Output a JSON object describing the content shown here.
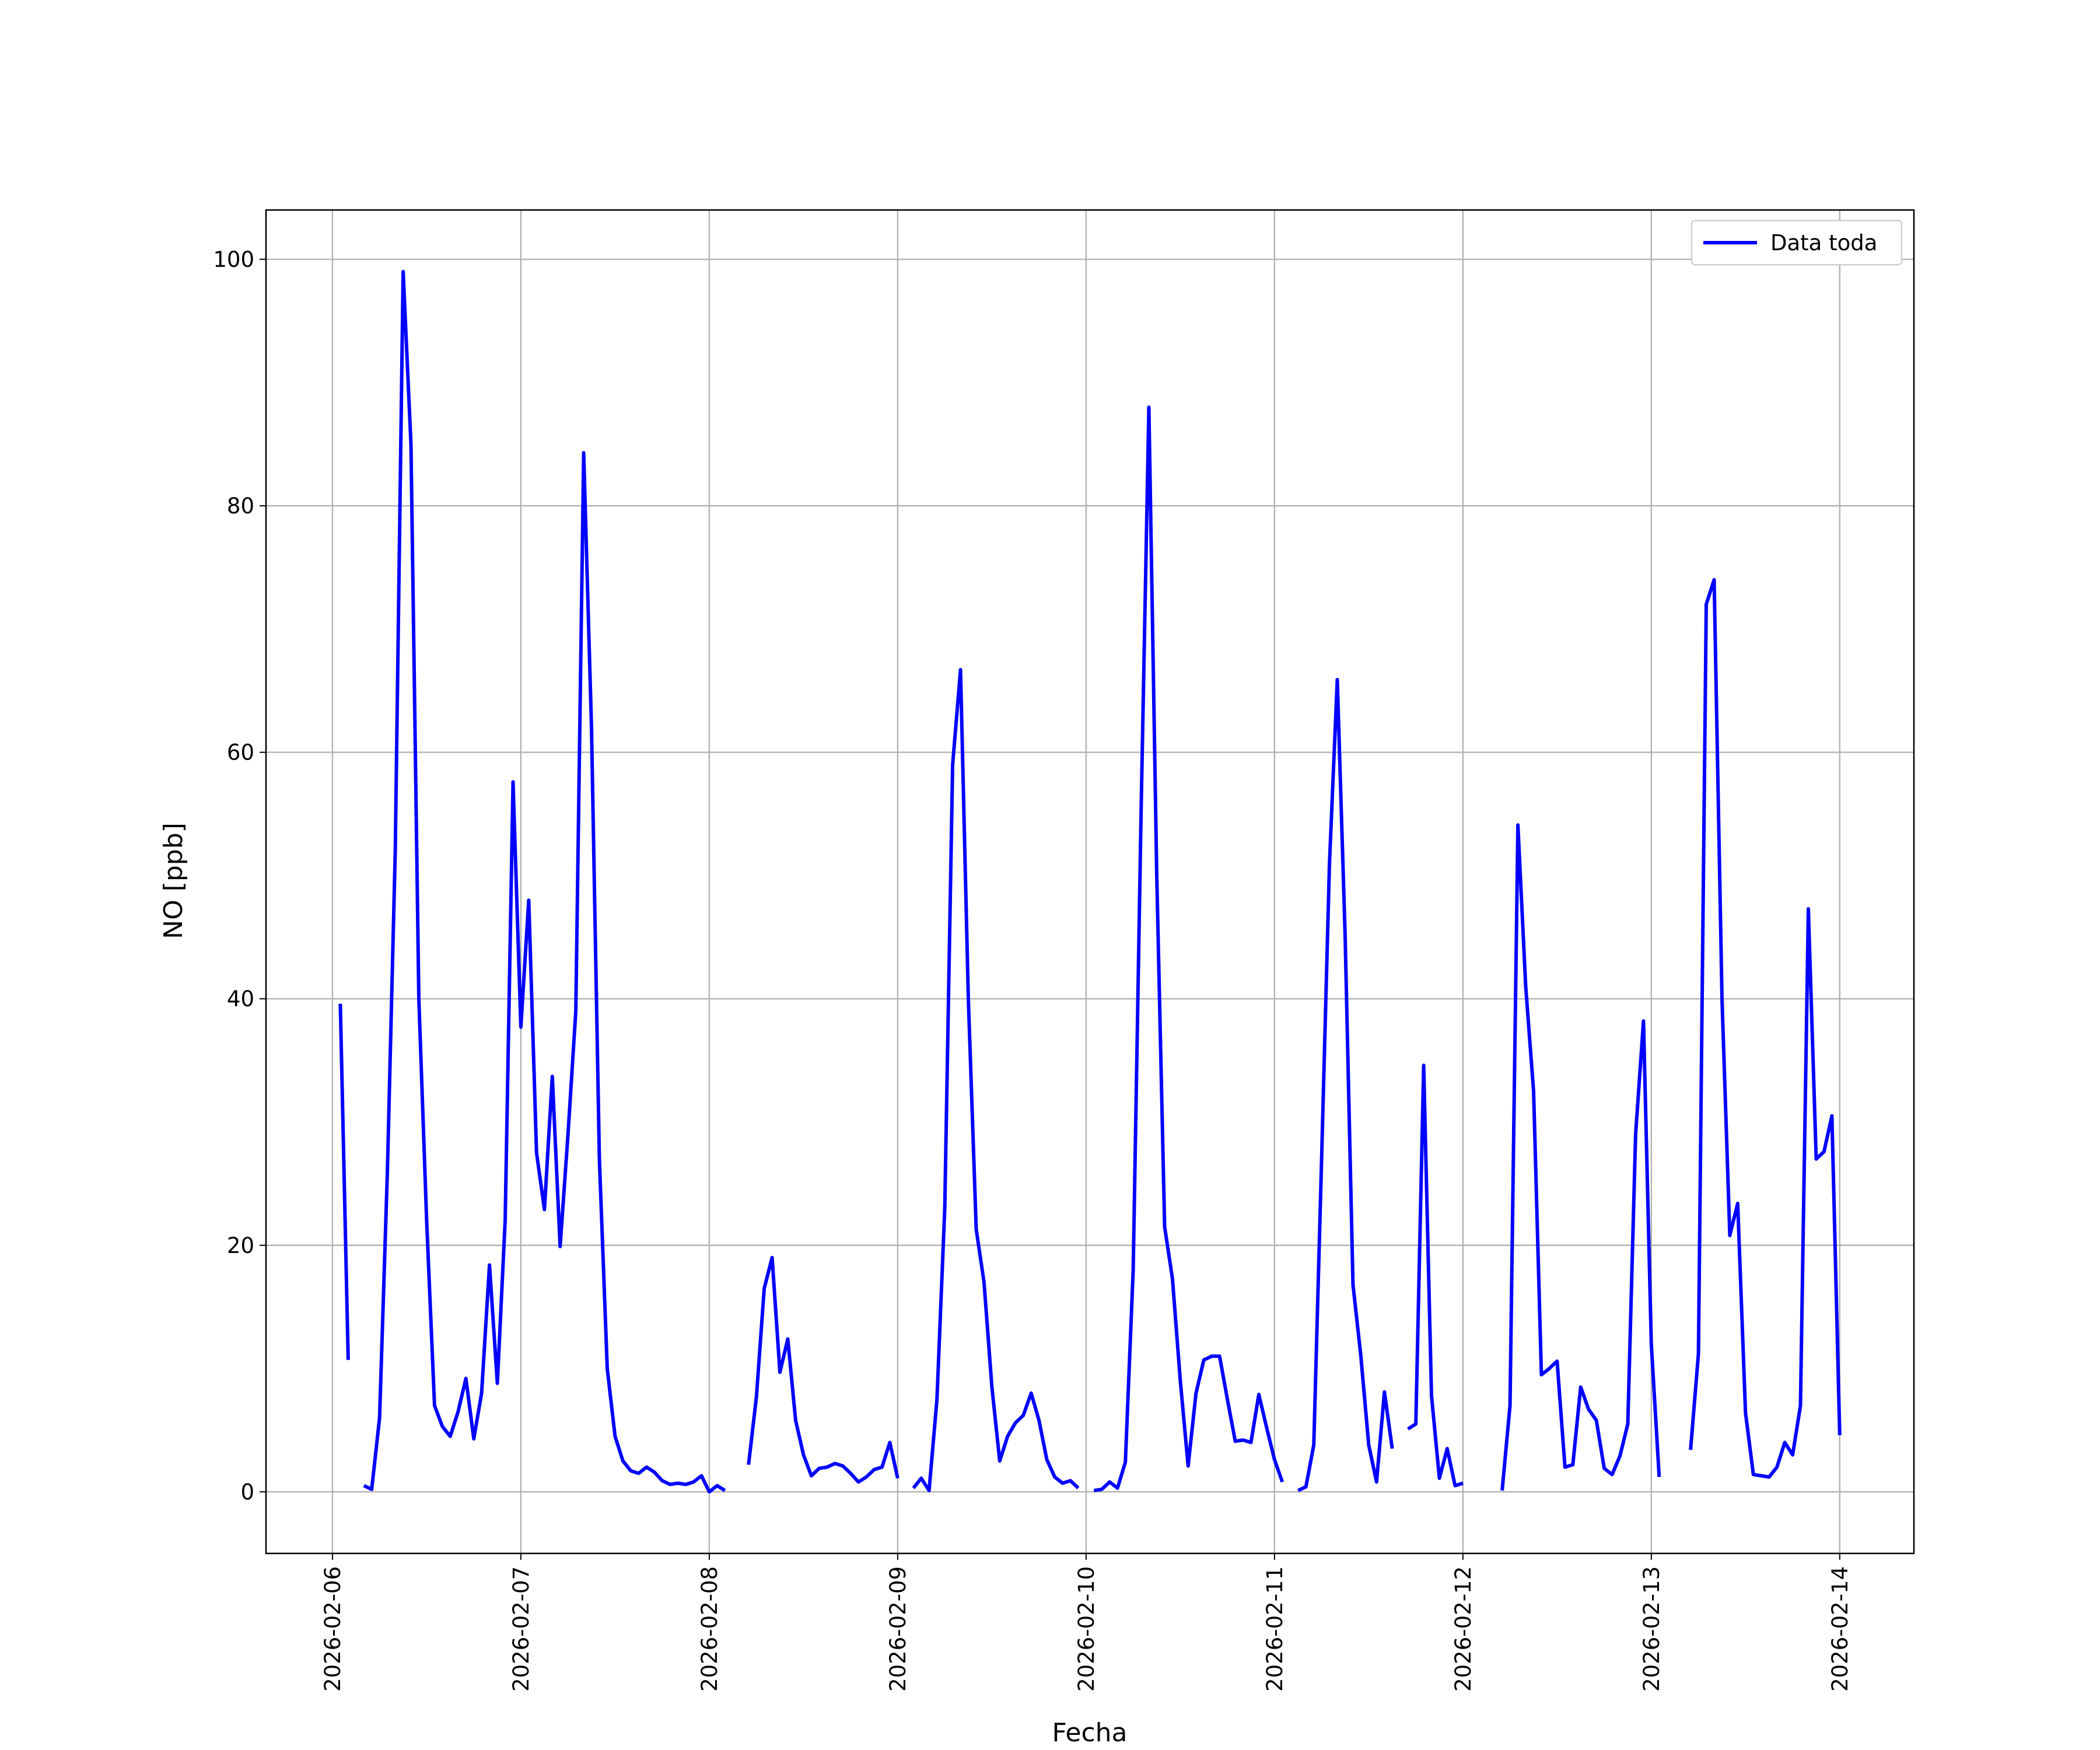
{
  "chart_data": {
    "type": "line",
    "x_label": "Fecha",
    "y_label": "NO [ppb]",
    "xlim": [
      "2026-02-05 15:32",
      "2026-02-14 09:27"
    ],
    "xticks": [
      "2026-02-06",
      "2026-02-07",
      "2026-02-08",
      "2026-02-09",
      "2026-02-10",
      "2026-02-11",
      "2026-02-12",
      "2026-02-13",
      "2026-02-14"
    ],
    "ylim": [
      -5,
      104
    ],
    "yticks": [
      0,
      20,
      40,
      60,
      80,
      100
    ],
    "grid": true,
    "legend": "upper right",
    "x": [
      "2026-02-06 00:00",
      "2026-02-06 01:00",
      "2026-02-06 02:00",
      "2026-02-06 03:00",
      "2026-02-06 04:00",
      "2026-02-06 05:00",
      "2026-02-06 06:00",
      "2026-02-06 07:00",
      "2026-02-06 08:00",
      "2026-02-06 09:00",
      "2026-02-06 10:00",
      "2026-02-06 11:00",
      "2026-02-06 12:00",
      "2026-02-06 13:00",
      "2026-02-06 14:00",
      "2026-02-06 15:00",
      "2026-02-06 16:00",
      "2026-02-06 17:00",
      "2026-02-06 18:00",
      "2026-02-06 19:00",
      "2026-02-06 20:00",
      "2026-02-06 21:00",
      "2026-02-06 22:00",
      "2026-02-06 23:00",
      "2026-02-07 00:00",
      "2026-02-07 01:00",
      "2026-02-07 02:00",
      "2026-02-07 03:00",
      "2026-02-07 04:00",
      "2026-02-07 05:00",
      "2026-02-07 06:00",
      "2026-02-07 07:00",
      "2026-02-07 08:00",
      "2026-02-07 09:00",
      "2026-02-07 10:00",
      "2026-02-07 11:00",
      "2026-02-07 12:00",
      "2026-02-07 13:00",
      "2026-02-07 14:00",
      "2026-02-07 15:00",
      "2026-02-07 16:00",
      "2026-02-07 17:00",
      "2026-02-07 18:00",
      "2026-02-07 19:00",
      "2026-02-07 20:00",
      "2026-02-07 21:00",
      "2026-02-07 22:00",
      "2026-02-07 23:00",
      "2026-02-08 00:00",
      "2026-02-08 01:00",
      "2026-02-08 02:00",
      "2026-02-08 03:00",
      "2026-02-08 04:00",
      "2026-02-08 05:00",
      "2026-02-08 06:00",
      "2026-02-08 07:00",
      "2026-02-08 08:00",
      "2026-02-08 09:00",
      "2026-02-08 10:00",
      "2026-02-08 11:00",
      "2026-02-08 12:00",
      "2026-02-08 13:00",
      "2026-02-08 14:00",
      "2026-02-08 15:00",
      "2026-02-08 16:00",
      "2026-02-08 17:00",
      "2026-02-08 18:00",
      "2026-02-08 19:00",
      "2026-02-08 20:00",
      "2026-02-08 21:00",
      "2026-02-08 22:00",
      "2026-02-08 23:00",
      "2026-02-09 00:00",
      "2026-02-09 01:00",
      "2026-02-09 02:00",
      "2026-02-09 03:00",
      "2026-02-09 04:00",
      "2026-02-09 05:00",
      "2026-02-09 06:00",
      "2026-02-09 07:00",
      "2026-02-09 08:00",
      "2026-02-09 09:00",
      "2026-02-09 10:00",
      "2026-02-09 11:00",
      "2026-02-09 12:00",
      "2026-02-09 13:00",
      "2026-02-09 14:00",
      "2026-02-09 15:00",
      "2026-02-09 16:00",
      "2026-02-09 17:00",
      "2026-02-09 18:00",
      "2026-02-09 19:00",
      "2026-02-09 20:00",
      "2026-02-09 21:00",
      "2026-02-09 22:00",
      "2026-02-09 23:00",
      "2026-02-10 00:00",
      "2026-02-10 01:00",
      "2026-02-10 02:00",
      "2026-02-10 03:00",
      "2026-02-10 04:00",
      "2026-02-10 05:00",
      "2026-02-10 06:00",
      "2026-02-10 07:00",
      "2026-02-10 08:00",
      "2026-02-10 09:00",
      "2026-02-10 10:00",
      "2026-02-10 11:00",
      "2026-02-10 12:00",
      "2026-02-10 13:00",
      "2026-02-10 14:00",
      "2026-02-10 15:00",
      "2026-02-10 16:00",
      "2026-02-10 17:00",
      "2026-02-10 18:00",
      "2026-02-10 19:00",
      "2026-02-10 20:00",
      "2026-02-10 21:00",
      "2026-02-10 22:00",
      "2026-02-10 23:00",
      "2026-02-11 00:00",
      "2026-02-11 01:00",
      "2026-02-11 02:00",
      "2026-02-11 03:00",
      "2026-02-11 04:00",
      "2026-02-11 05:00",
      "2026-02-11 06:00",
      "2026-02-11 07:00",
      "2026-02-11 08:00",
      "2026-02-11 09:00",
      "2026-02-11 10:00",
      "2026-02-11 11:00",
      "2026-02-11 12:00",
      "2026-02-11 13:00",
      "2026-02-11 14:00",
      "2026-02-11 15:00",
      "2026-02-11 16:00",
      "2026-02-11 17:00",
      "2026-02-11 18:00",
      "2026-02-11 19:00",
      "2026-02-11 20:00",
      "2026-02-11 21:00",
      "2026-02-11 22:00",
      "2026-02-11 23:00",
      "2026-02-12 00:00",
      "2026-02-12 01:00",
      "2026-02-12 02:00",
      "2026-02-12 03:00",
      "2026-02-12 04:00",
      "2026-02-12 05:00",
      "2026-02-12 06:00",
      "2026-02-12 07:00",
      "2026-02-12 08:00",
      "2026-02-12 09:00",
      "2026-02-12 10:00",
      "2026-02-12 11:00",
      "2026-02-12 12:00",
      "2026-02-12 13:00",
      "2026-02-12 14:00",
      "2026-02-12 15:00",
      "2026-02-12 16:00",
      "2026-02-12 17:00",
      "2026-02-12 18:00",
      "2026-02-12 19:00",
      "2026-02-12 20:00",
      "2026-02-12 21:00",
      "2026-02-12 22:00",
      "2026-02-12 23:00",
      "2026-02-13 00:00",
      "2026-02-13 01:00",
      "2026-02-13 02:00",
      "2026-02-13 03:00",
      "2026-02-13 04:00",
      "2026-02-13 05:00",
      "2026-02-13 06:00",
      "2026-02-13 07:00",
      "2026-02-13 08:00",
      "2026-02-13 09:00",
      "2026-02-13 10:00",
      "2026-02-13 11:00",
      "2026-02-13 12:00",
      "2026-02-13 13:00",
      "2026-02-13 14:00",
      "2026-02-13 15:00",
      "2026-02-13 16:00",
      "2026-02-13 17:00",
      "2026-02-13 18:00",
      "2026-02-13 19:00",
      "2026-02-13 20:00",
      "2026-02-13 21:00",
      "2026-02-13 22:00",
      "2026-02-13 23:00",
      "2026-02-14 00:00"
    ],
    "series": [
      {
        "name": "Data toda",
        "color": "#0000ff",
        "values": [
          null,
          39.6,
          10.7,
          null,
          0.5,
          0.2,
          6,
          26,
          52,
          99,
          85,
          40,
          22,
          7,
          5.3,
          4.5,
          6.5,
          9.2,
          4.3,
          8,
          18.4,
          8.8,
          22,
          57.6,
          37.7,
          48,
          27.5,
          22.9,
          33.7,
          19.9,
          29,
          39,
          84.3,
          62,
          27,
          10,
          4.5,
          2.5,
          1.7,
          1.5,
          2,
          1.6,
          0.9,
          0.6,
          0.7,
          0.6,
          0.8,
          1.3,
          0,
          0.5,
          0.1,
          null,
          null,
          2.2,
          7.7,
          16.5,
          19,
          9.7,
          12.4,
          5.8,
          3,
          1.3,
          1.9,
          2,
          2.3,
          2.1,
          1.5,
          0.8,
          1.2,
          1.8,
          2,
          4,
          1.1,
          null,
          0.3,
          1.1,
          0.1,
          7.5,
          23,
          59,
          66.7,
          40,
          21.3,
          17,
          8.5,
          2.5,
          4.5,
          5.6,
          6.2,
          8,
          5.8,
          2.6,
          1.2,
          0.7,
          0.9,
          0.3,
          null,
          0.1,
          0.2,
          0.8,
          0.3,
          2.4,
          18,
          55,
          88,
          50,
          21.5,
          17.3,
          9,
          2.1,
          8,
          10.7,
          11,
          11,
          7.5,
          4.1,
          4.2,
          4,
          7.9,
          5.2,
          2.6,
          0.8,
          null,
          0.1,
          0.4,
          3.8,
          27,
          51,
          65.9,
          45,
          16.8,
          11,
          3.8,
          0.8,
          8.1,
          3.5,
          null,
          5.1,
          5.5,
          34.6,
          7.8,
          1.1,
          3.5,
          0.5,
          0.7,
          null,
          null,
          null,
          null,
          0.1,
          7,
          54.1,
          41,
          32.5,
          9.5,
          10,
          10.6,
          2,
          2.2,
          8.5,
          6.7,
          5.8,
          1.9,
          1.4,
          2.9,
          5.5,
          29,
          38.2,
          12,
          1.2,
          null,
          null,
          null,
          3.4,
          11.2,
          72,
          74,
          40,
          20.8,
          23.4,
          6.4,
          1.4,
          1.3,
          1.2,
          2,
          4,
          3,
          7,
          47.3,
          27,
          27.6,
          30.5,
          4.6
        ]
      }
    ]
  }
}
